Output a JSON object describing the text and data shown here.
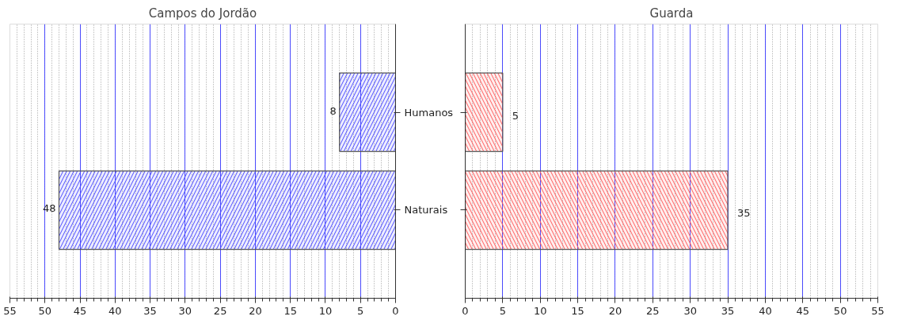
{
  "chart_data": [
    {
      "type": "bar",
      "orientation": "horizontal",
      "title": "Campos do Jordão",
      "categories": [
        "Humanos",
        "Naturais"
      ],
      "values": [
        8,
        48
      ],
      "color": "#4a4aff",
      "xlim": [
        55,
        0
      ],
      "xticks": [
        55,
        50,
        45,
        40,
        35,
        30,
        25,
        20,
        15,
        10,
        5,
        0
      ],
      "data_labels": true,
      "grid": "x"
    },
    {
      "type": "bar",
      "orientation": "horizontal",
      "title": "Guarda",
      "categories": [
        null,
        null
      ],
      "values": [
        5,
        35
      ],
      "color": "#ff5a5a",
      "xlim": [
        0,
        55
      ],
      "xticks": [
        0,
        5,
        10,
        15,
        20,
        25,
        30,
        35,
        40,
        45,
        50,
        55
      ],
      "data_labels": true,
      "grid": "x",
      "tick_labels": "x"
    }
  ]
}
